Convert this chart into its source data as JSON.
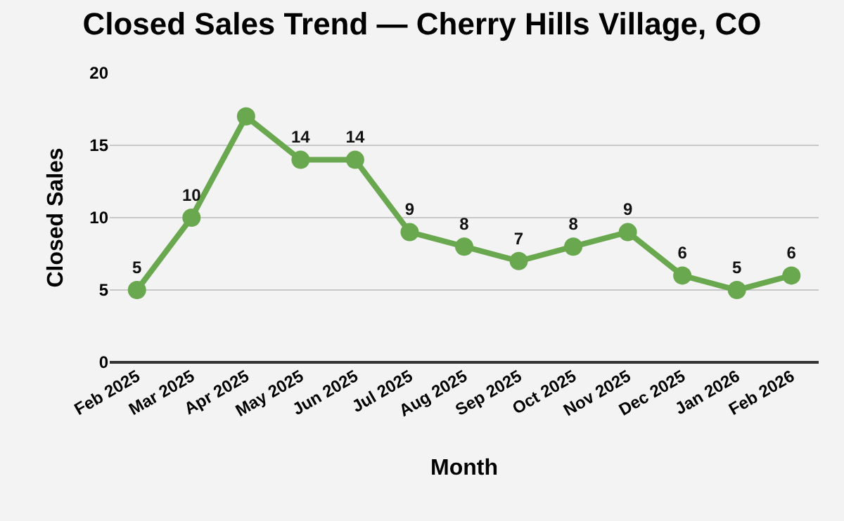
{
  "chart_data": {
    "type": "line",
    "title": "Closed Sales Trend — Cherry Hills Village, CO",
    "xlabel": "Month",
    "ylabel": "Closed Sales",
    "categories": [
      "Feb 2025",
      "Mar 2025",
      "Apr 2025",
      "May 2025",
      "Jun 2025",
      "Jul 2025",
      "Aug 2025",
      "Sep 2025",
      "Oct 2025",
      "Nov 2025",
      "Dec 2025",
      "Jan 2026",
      "Feb 2026"
    ],
    "series": [
      {
        "color": "#6aa84f",
        "values": [
          5,
          10,
          17,
          14,
          14,
          9,
          8,
          7,
          8,
          9,
          6,
          5,
          6
        ],
        "value_labels": [
          "5",
          "10",
          null,
          "14",
          "14",
          "9",
          "8",
          "7",
          "8",
          "9",
          "6",
          "5",
          "6"
        ]
      }
    ],
    "ylim": [
      0,
      20
    ],
    "yticks": [
      0,
      5,
      10,
      15,
      20
    ],
    "grid": "y",
    "marker": "circle",
    "line_style": "solid"
  }
}
